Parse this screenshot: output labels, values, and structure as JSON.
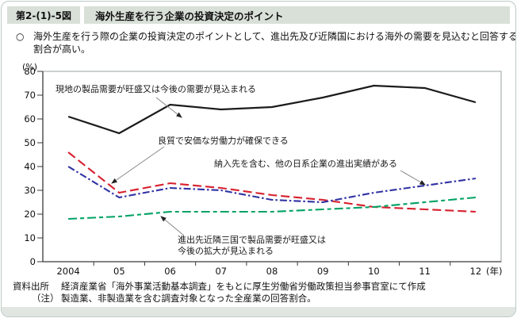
{
  "header": {
    "figure_number": "第2-(1)-5図",
    "title": "海外生産を行う企業の投資決定のポイント"
  },
  "summary": {
    "bullet": "○",
    "text": "海外生産を行う際の企業の投資決定のポイントとして、進出先及び近隣国における海外の需要を見込むと回答する割合が高い。"
  },
  "chart_data": {
    "type": "line",
    "unit_label": "(%)",
    "x_categories": [
      "2004",
      "05",
      "06",
      "07",
      "08",
      "09",
      "10",
      "11",
      "12"
    ],
    "x_axis_suffix": "(年)",
    "ylim": [
      0,
      80
    ],
    "yticks": [
      0,
      10,
      20,
      30,
      40,
      50,
      60,
      70,
      80
    ],
    "grid": "off",
    "legend": "inline-annotations",
    "series": [
      {
        "name": "現地の製品需要が旺盛又は今後の需要が見込まれる",
        "color": "#1c1c1c",
        "style": "solid",
        "values": [
          61,
          54,
          66,
          64,
          65,
          69,
          74,
          73,
          67
        ]
      },
      {
        "name": "良質で安価な労働力が確保できる",
        "color": "#d7202e",
        "style": "dashed",
        "values": [
          46,
          29,
          33,
          31,
          28,
          26,
          23,
          22,
          21
        ]
      },
      {
        "name": "納入先を含む、他の日系企業の進出実績がある",
        "color": "#3133a3",
        "style": "dash-dot",
        "values": [
          40,
          27,
          31,
          30,
          26,
          25,
          29,
          32,
          35
        ]
      },
      {
        "name": "進出先近隣三国で製品需要が旺盛又は今後の拡大が見込まれる",
        "color": "#00a264",
        "style": "long-short-dash",
        "values": [
          18,
          19,
          21,
          21,
          21,
          22,
          23,
          25,
          27
        ]
      }
    ]
  },
  "footer": {
    "source_label": "資料出所",
    "source_text": "経済産業省「海外事業活動基本調査」をもとに厚生労働省労働政策担当参事官室にて作成",
    "note_label": "（注）",
    "note_text": "製造業、非製造業を含む調査対象となった全産業の回答割合。"
  }
}
